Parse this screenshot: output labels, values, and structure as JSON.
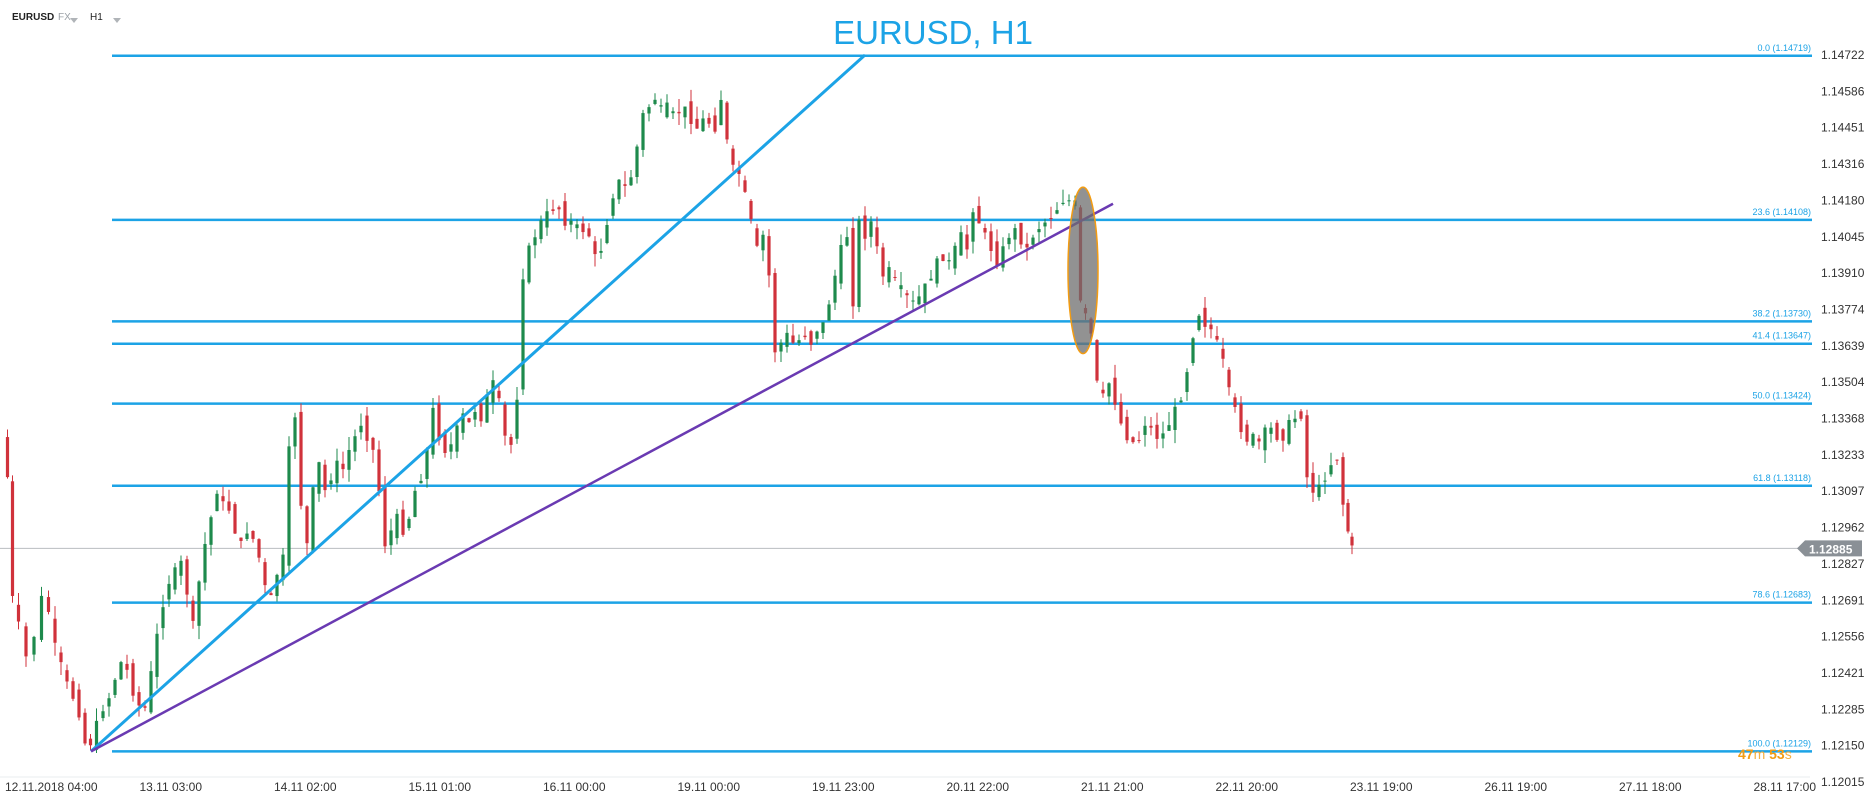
{
  "header": {
    "symbol": "EURUSD",
    "market": "FX",
    "timeframe": "H1"
  },
  "colors": {
    "fib_line": "#1ca3e6",
    "trend_blue": "#1ca3e6",
    "trend_purple": "#6a3ab2",
    "bull": "#1e8a4c",
    "bear": "#d0323b",
    "ellipse_fill": "#6d6d6d",
    "ellipse_stroke": "#f39c12",
    "axis_text": "#333333",
    "price_tag": "#8a9096"
  },
  "timer": {
    "minutes": "47",
    "minutes_unit": "m",
    "seconds": "53",
    "seconds_unit": "s"
  },
  "chart_data": {
    "type": "candlestick",
    "title": "EURUSD, H1",
    "symbol": "EURUSD",
    "timeframe": "H1",
    "y_range": [
      1.12015,
      1.14722
    ],
    "y_ticks": [
      "1.14722",
      "1.14586",
      "1.14451",
      "1.14316",
      "1.14180",
      "1.14045",
      "1.13910",
      "1.13774",
      "1.13639",
      "1.13504",
      "1.13368",
      "1.13233",
      "1.13097",
      "1.12962",
      "1.12827",
      "1.12691",
      "1.12556",
      "1.12421",
      "1.12285",
      "1.12150",
      "1.12015"
    ],
    "x_ticks": [
      "12.11.2018  04:00",
      "13.11  03:00",
      "14.11  02:00",
      "15.11  01:00",
      "16.11  00:00",
      "19.11  00:00",
      "19.11  23:00",
      "20.11  22:00",
      "21.11  21:00",
      "22.11  20:00",
      "23.11  19:00",
      "26.11  19:00",
      "27.11  18:00",
      "28.11  17:00"
    ],
    "current_price": "1.12885",
    "fib_levels": [
      {
        "label": "0.0 (1.14719)",
        "price": 1.14719
      },
      {
        "label": "23.6 (1.14108)",
        "price": 1.14108
      },
      {
        "label": "38.2 (1.13730)",
        "price": 1.1373
      },
      {
        "label": "41.4 (1.13647)",
        "price": 1.13647
      },
      {
        "label": "50.0 (1.13424)",
        "price": 1.13424
      },
      {
        "label": "61.8 (1.13118)",
        "price": 1.13118
      },
      {
        "label": "78.6 (1.12683)",
        "price": 1.12683
      },
      {
        "label": "100.0 (1.12129)",
        "price": 1.12129
      }
    ],
    "trendlines": [
      {
        "color": "blue",
        "from": {
          "bar": 91,
          "price": 1.12129
        },
        "to": {
          "bar": 865,
          "price": 1.14722
        }
      },
      {
        "color": "purple",
        "from": {
          "bar": 91,
          "price": 1.12129
        },
        "to": {
          "bar": 1113,
          "price": 1.14168
        }
      }
    ],
    "highlight_ellipse": {
      "bar": 1083,
      "price_top": 1.1423,
      "price_bottom": 1.1361
    },
    "price_path": [
      [
        5,
        1.133
      ],
      [
        10,
        1.1315
      ],
      [
        15,
        1.127
      ],
      [
        22,
        1.126
      ],
      [
        30,
        1.1248
      ],
      [
        38,
        1.1256
      ],
      [
        45,
        1.127
      ],
      [
        52,
        1.1265
      ],
      [
        58,
        1.1252
      ],
      [
        64,
        1.1245
      ],
      [
        70,
        1.1238
      ],
      [
        76,
        1.1233
      ],
      [
        82,
        1.1227
      ],
      [
        88,
        1.1216
      ],
      [
        93,
        1.1216
      ],
      [
        100,
        1.1223
      ],
      [
        106,
        1.1229
      ],
      [
        112,
        1.1233
      ],
      [
        118,
        1.124
      ],
      [
        124,
        1.1246
      ],
      [
        130,
        1.1243
      ],
      [
        136,
        1.1235
      ],
      [
        142,
        1.123
      ],
      [
        148,
        1.1229
      ],
      [
        154,
        1.1242
      ],
      [
        160,
        1.1256
      ],
      [
        166,
        1.1268
      ],
      [
        172,
        1.1276
      ],
      [
        178,
        1.128
      ],
      [
        184,
        1.1283
      ],
      [
        190,
        1.1272
      ],
      [
        196,
        1.126
      ],
      [
        202,
        1.1276
      ],
      [
        208,
        1.129
      ],
      [
        214,
        1.13
      ],
      [
        220,
        1.131
      ],
      [
        226,
        1.1305
      ],
      [
        232,
        1.1303
      ],
      [
        238,
        1.1295
      ],
      [
        244,
        1.129
      ],
      [
        250,
        1.1295
      ],
      [
        256,
        1.1292
      ],
      [
        262,
        1.1285
      ],
      [
        268,
        1.1274
      ],
      [
        274,
        1.127
      ],
      [
        280,
        1.1279
      ],
      [
        286,
        1.1285
      ],
      [
        292,
        1.1325
      ],
      [
        298,
        1.1338
      ],
      [
        304,
        1.1305
      ],
      [
        310,
        1.129
      ],
      [
        316,
        1.131
      ],
      [
        322,
        1.132
      ],
      [
        328,
        1.131
      ],
      [
        334,
        1.1315
      ],
      [
        340,
        1.132
      ],
      [
        346,
        1.1318
      ],
      [
        352,
        1.1325
      ],
      [
        358,
        1.133
      ],
      [
        364,
        1.1335
      ],
      [
        370,
        1.133
      ],
      [
        376,
        1.1325
      ],
      [
        382,
        1.131
      ],
      [
        388,
        1.129
      ],
      [
        394,
        1.1295
      ],
      [
        400,
        1.13
      ],
      [
        406,
        1.1295
      ],
      [
        412,
        1.13
      ],
      [
        418,
        1.131
      ],
      [
        424,
        1.1315
      ],
      [
        430,
        1.1325
      ],
      [
        436,
        1.134
      ],
      [
        442,
        1.133
      ],
      [
        448,
        1.1325
      ],
      [
        454,
        1.1327
      ],
      [
        460,
        1.1333
      ],
      [
        466,
        1.1338
      ],
      [
        472,
        1.1335
      ],
      [
        478,
        1.134
      ],
      [
        484,
        1.1337
      ],
      [
        490,
        1.1345
      ],
      [
        496,
        1.135
      ],
      [
        502,
        1.1343
      ],
      [
        508,
        1.133
      ],
      [
        514,
        1.1327
      ],
      [
        520,
        1.1345
      ],
      [
        526,
        1.139
      ],
      [
        532,
        1.14
      ],
      [
        538,
        1.1405
      ],
      [
        544,
        1.141
      ],
      [
        550,
        1.1413
      ],
      [
        556,
        1.1415
      ],
      [
        562,
        1.1415
      ],
      [
        568,
        1.141
      ],
      [
        574,
        1.141
      ],
      [
        580,
        1.1408
      ],
      [
        586,
        1.1407
      ],
      [
        592,
        1.1405
      ],
      [
        598,
        1.1397
      ],
      [
        604,
        1.14
      ],
      [
        610,
        1.141
      ],
      [
        616,
        1.142
      ],
      [
        622,
        1.1425
      ],
      [
        628,
        1.1423
      ],
      [
        634,
        1.1427
      ],
      [
        640,
        1.1438
      ],
      [
        646,
        1.145
      ],
      [
        652,
        1.1453
      ],
      [
        658,
        1.1456
      ],
      [
        664,
        1.1452
      ],
      [
        670,
        1.1453
      ],
      [
        676,
        1.145
      ],
      [
        682,
        1.1451
      ],
      [
        688,
        1.1452
      ],
      [
        694,
        1.1448
      ],
      [
        700,
        1.1445
      ],
      [
        706,
        1.1448
      ],
      [
        712,
        1.1447
      ],
      [
        718,
        1.1445
      ],
      [
        724,
        1.1456
      ],
      [
        730,
        1.144
      ],
      [
        736,
        1.143
      ],
      [
        742,
        1.1428
      ],
      [
        748,
        1.142
      ],
      [
        754,
        1.141
      ],
      [
        760,
        1.14
      ],
      [
        766,
        1.1405
      ],
      [
        772,
        1.139
      ],
      [
        778,
        1.1362
      ],
      [
        784,
        1.1365
      ],
      [
        790,
        1.1368
      ],
      [
        796,
        1.1365
      ],
      [
        802,
        1.1366
      ],
      [
        808,
        1.1368
      ],
      [
        814,
        1.1365
      ],
      [
        820,
        1.137
      ],
      [
        826,
        1.1372
      ],
      [
        832,
        1.138
      ],
      [
        838,
        1.139
      ],
      [
        844,
        1.14
      ],
      [
        850,
        1.1405
      ],
      [
        856,
        1.138
      ],
      [
        862,
        1.141
      ],
      [
        868,
        1.1405
      ],
      [
        874,
        1.141
      ],
      [
        880,
        1.14
      ],
      [
        886,
        1.139
      ],
      [
        892,
        1.1392
      ],
      [
        898,
        1.1388
      ],
      [
        904,
        1.1385
      ],
      [
        910,
        1.1382
      ],
      [
        916,
        1.138
      ],
      [
        922,
        1.1382
      ],
      [
        928,
        1.1386
      ],
      [
        934,
        1.139
      ],
      [
        940,
        1.1395
      ],
      [
        946,
        1.1397
      ],
      [
        952,
        1.1395
      ],
      [
        958,
        1.14
      ],
      [
        964,
        1.1405
      ],
      [
        970,
        1.14
      ],
      [
        976,
        1.1415
      ],
      [
        982,
        1.141
      ],
      [
        988,
        1.1405
      ],
      [
        994,
        1.14
      ],
      [
        1000,
        1.1395
      ],
      [
        1006,
        1.14
      ],
      [
        1012,
        1.1405
      ],
      [
        1018,
        1.1407
      ],
      [
        1024,
        1.1403
      ],
      [
        1030,
        1.14
      ],
      [
        1036,
        1.1405
      ],
      [
        1042,
        1.1408
      ],
      [
        1048,
        1.141
      ],
      [
        1054,
        1.1412
      ],
      [
        1060,
        1.1415
      ],
      [
        1066,
        1.1418
      ],
      [
        1072,
        1.1418
      ],
      [
        1078,
        1.1417
      ],
      [
        1083,
        1.138
      ],
      [
        1088,
        1.1375
      ],
      [
        1094,
        1.1368
      ],
      [
        1100,
        1.135
      ],
      [
        1106,
        1.1345
      ],
      [
        1112,
        1.135
      ],
      [
        1118,
        1.1343
      ],
      [
        1124,
        1.1335
      ],
      [
        1130,
        1.133
      ],
      [
        1136,
        1.1328
      ],
      [
        1142,
        1.1329
      ],
      [
        1148,
        1.1335
      ],
      [
        1154,
        1.1333
      ],
      [
        1160,
        1.133
      ],
      [
        1166,
        1.1331
      ],
      [
        1172,
        1.1335
      ],
      [
        1178,
        1.134
      ],
      [
        1184,
        1.1345
      ],
      [
        1190,
        1.1355
      ],
      [
        1196,
        1.1368
      ],
      [
        1202,
        1.1376
      ],
      [
        1208,
        1.1372
      ],
      [
        1214,
        1.137
      ],
      [
        1220,
        1.1365
      ],
      [
        1226,
        1.1358
      ],
      [
        1232,
        1.1347
      ],
      [
        1238,
        1.134
      ],
      [
        1244,
        1.1333
      ],
      [
        1250,
        1.1329
      ],
      [
        1256,
        1.133
      ],
      [
        1262,
        1.1328
      ],
      [
        1268,
        1.1332
      ],
      [
        1274,
        1.1333
      ],
      [
        1280,
        1.133
      ],
      [
        1286,
        1.133
      ],
      [
        1292,
        1.1335
      ],
      [
        1298,
        1.1337
      ],
      [
        1304,
        1.1338
      ],
      [
        1310,
        1.1315
      ],
      [
        1316,
        1.131
      ],
      [
        1322,
        1.1311
      ],
      [
        1328,
        1.1315
      ],
      [
        1334,
        1.132
      ],
      [
        1340,
        1.1322
      ],
      [
        1346,
        1.1305
      ],
      [
        1350,
        1.1295
      ],
      [
        1354,
        1.12885
      ]
    ]
  }
}
